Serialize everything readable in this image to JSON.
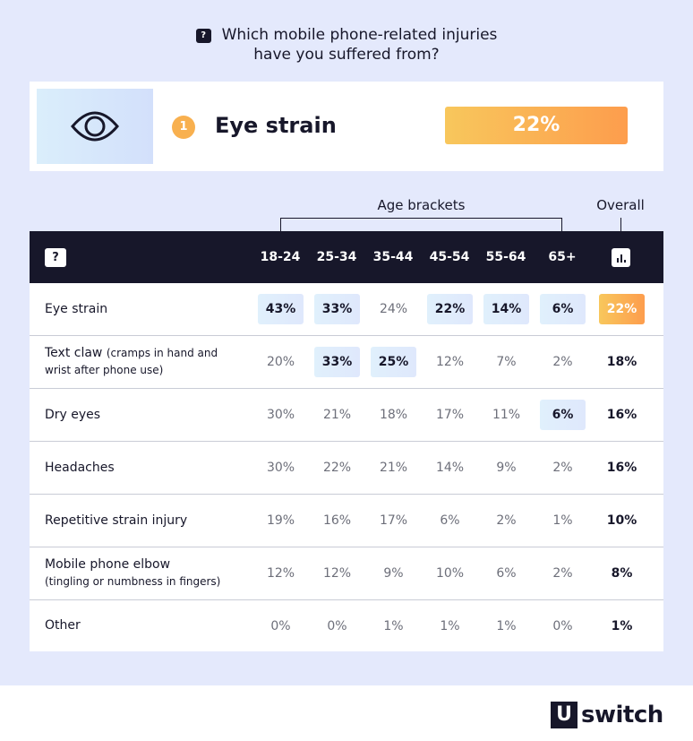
{
  "title": {
    "icon": "question-bubble-icon",
    "line1": "Which mobile phone-related injuries",
    "line2": "have you suffered from?"
  },
  "featured": {
    "icon": "eye-icon",
    "rank": "1",
    "label": "Eye strain",
    "value": "22%"
  },
  "age_brackets_label": "Age brackets",
  "overall_label": "Overall",
  "colors": {
    "dark": "#17172a",
    "accent_start": "#f8c75c",
    "accent_end": "#fd9d4d",
    "highlight": "#e0f0fc",
    "background": "#e4e9fc"
  },
  "chart_data": {
    "type": "table",
    "columns": [
      "18-24",
      "25-34",
      "35-44",
      "45-54",
      "55-64",
      "65+"
    ],
    "header_icons": {
      "label_column": "question-bubble-icon",
      "overall_column": "bar-chart-icon"
    },
    "rows": [
      {
        "label": "Eye strain",
        "sub": "",
        "values": [
          "43%",
          "33%",
          "24%",
          "22%",
          "14%",
          "6%"
        ],
        "overall": "22%",
        "highlight": [
          0,
          1,
          3,
          4,
          5
        ],
        "overall_highlight": true
      },
      {
        "label": "Text claw",
        "sub": "(cramps in hand and wrist after phone use)",
        "values": [
          "20%",
          "33%",
          "25%",
          "12%",
          "7%",
          "2%"
        ],
        "overall": "18%",
        "highlight": [
          1,
          2
        ]
      },
      {
        "label": "Dry eyes",
        "sub": "",
        "values": [
          "30%",
          "21%",
          "18%",
          "17%",
          "11%",
          "6%"
        ],
        "overall": "16%",
        "highlight": [
          5
        ]
      },
      {
        "label": "Headaches",
        "sub": "",
        "values": [
          "30%",
          "22%",
          "21%",
          "14%",
          "9%",
          "2%"
        ],
        "overall": "16%",
        "highlight": []
      },
      {
        "label": "Repetitive strain injury",
        "sub": "",
        "values": [
          "19%",
          "16%",
          "17%",
          "6%",
          "2%",
          "1%"
        ],
        "overall": "10%",
        "highlight": []
      },
      {
        "label": "Mobile phone elbow",
        "sub": "(tingling or numbness in fingers)",
        "values": [
          "12%",
          "12%",
          "9%",
          "10%",
          "6%",
          "2%"
        ],
        "overall": "8%",
        "highlight": []
      },
      {
        "label": "Other",
        "sub": "",
        "values": [
          "0%",
          "0%",
          "1%",
          "1%",
          "1%",
          "0%"
        ],
        "overall": "1%",
        "highlight": []
      }
    ]
  },
  "footer": {
    "logo_mark": "U",
    "logo_text": "switch"
  }
}
